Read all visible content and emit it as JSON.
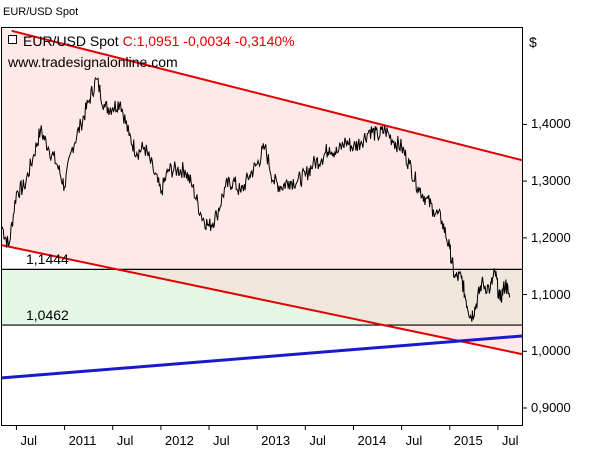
{
  "window_title": "EUR/USD Spot",
  "legend": {
    "name": "EUR/USD Spot",
    "quote": "C:1,0951 -0,0034 -0,3140%"
  },
  "watermark": "www.tradesignalonline.com",
  "colors": {
    "channel_line": "#e00000",
    "support_line": "#1a1acc",
    "price_line": "#000000",
    "channel_fill": "#ffe8e8",
    "range_fill": "#efe6dc",
    "green_fill": "#e6f7e6"
  },
  "chart_data": {
    "type": "line",
    "title": "EUR/USD Spot",
    "ylabel": "$",
    "ylim": [
      0.87,
      1.57
    ],
    "xlim": [
      2010.35,
      2015.75
    ],
    "y_ticks": [
      {
        "value": 1.4,
        "label": "1,4000"
      },
      {
        "value": 1.3,
        "label": "1,3000"
      },
      {
        "value": 1.2,
        "label": "1,2000"
      },
      {
        "value": 1.1,
        "label": "1,1000"
      },
      {
        "value": 1.0,
        "label": "1,0000"
      },
      {
        "value": 0.9,
        "label": "0,9000"
      }
    ],
    "x_ticks": [
      {
        "value": 2010.5,
        "label": "Jul"
      },
      {
        "value": 2011.0,
        "label": "2011"
      },
      {
        "value": 2011.5,
        "label": "Jul"
      },
      {
        "value": 2012.0,
        "label": "2012"
      },
      {
        "value": 2012.5,
        "label": "Jul"
      },
      {
        "value": 2013.0,
        "label": "2013"
      },
      {
        "value": 2013.5,
        "label": "Jul"
      },
      {
        "value": 2014.0,
        "label": "2014"
      },
      {
        "value": 2014.5,
        "label": "Jul"
      },
      {
        "value": 2015.0,
        "label": "2015"
      },
      {
        "value": 2015.5,
        "label": "Jul"
      }
    ],
    "levels": [
      {
        "value": 1.1444,
        "label": "1,1444"
      },
      {
        "value": 1.0462,
        "label": "1,0462"
      }
    ],
    "lines": [
      {
        "name": "channel-upper",
        "color": "#e00000",
        "points": [
          [
            2010.45,
            1.565
          ],
          [
            2015.75,
            1.337
          ]
        ]
      },
      {
        "name": "channel-lower",
        "color": "#e00000",
        "points": [
          [
            2010.35,
            1.187
          ],
          [
            2015.75,
            0.995
          ]
        ]
      },
      {
        "name": "support",
        "color": "#1a1acc",
        "points": [
          [
            2010.35,
            0.953
          ],
          [
            2015.75,
            1.027
          ]
        ]
      }
    ],
    "series": [
      {
        "values": [
          [
            2010.35,
            1.22
          ],
          [
            2010.42,
            1.185
          ],
          [
            2010.5,
            1.28
          ],
          [
            2010.58,
            1.29
          ],
          [
            2010.67,
            1.34
          ],
          [
            2010.75,
            1.39
          ],
          [
            2010.83,
            1.36
          ],
          [
            2010.92,
            1.33
          ],
          [
            2011.0,
            1.29
          ],
          [
            2011.08,
            1.36
          ],
          [
            2011.17,
            1.4
          ],
          [
            2011.25,
            1.44
          ],
          [
            2011.33,
            1.48
          ],
          [
            2011.42,
            1.43
          ],
          [
            2011.5,
            1.43
          ],
          [
            2011.58,
            1.44
          ],
          [
            2011.67,
            1.38
          ],
          [
            2011.75,
            1.35
          ],
          [
            2011.83,
            1.36
          ],
          [
            2011.92,
            1.32
          ],
          [
            2012.0,
            1.28
          ],
          [
            2012.08,
            1.32
          ],
          [
            2012.17,
            1.32
          ],
          [
            2012.25,
            1.32
          ],
          [
            2012.33,
            1.29
          ],
          [
            2012.42,
            1.24
          ],
          [
            2012.5,
            1.22
          ],
          [
            2012.58,
            1.24
          ],
          [
            2012.67,
            1.29
          ],
          [
            2012.75,
            1.3
          ],
          [
            2012.83,
            1.28
          ],
          [
            2012.92,
            1.31
          ],
          [
            2013.0,
            1.33
          ],
          [
            2013.08,
            1.36
          ],
          [
            2013.17,
            1.3
          ],
          [
            2013.25,
            1.29
          ],
          [
            2013.33,
            1.3
          ],
          [
            2013.42,
            1.3
          ],
          [
            2013.5,
            1.31
          ],
          [
            2013.58,
            1.33
          ],
          [
            2013.67,
            1.34
          ],
          [
            2013.75,
            1.36
          ],
          [
            2013.83,
            1.35
          ],
          [
            2013.92,
            1.37
          ],
          [
            2014.0,
            1.36
          ],
          [
            2014.08,
            1.37
          ],
          [
            2014.17,
            1.39
          ],
          [
            2014.25,
            1.38
          ],
          [
            2014.33,
            1.39
          ],
          [
            2014.42,
            1.37
          ],
          [
            2014.5,
            1.36
          ],
          [
            2014.58,
            1.33
          ],
          [
            2014.67,
            1.29
          ],
          [
            2014.75,
            1.27
          ],
          [
            2014.83,
            1.25
          ],
          [
            2014.92,
            1.23
          ],
          [
            2015.0,
            1.18
          ],
          [
            2015.05,
            1.13
          ],
          [
            2015.12,
            1.13
          ],
          [
            2015.17,
            1.09
          ],
          [
            2015.22,
            1.06
          ],
          [
            2015.27,
            1.08
          ],
          [
            2015.33,
            1.12
          ],
          [
            2015.42,
            1.11
          ],
          [
            2015.47,
            1.14
          ],
          [
            2015.52,
            1.09
          ],
          [
            2015.58,
            1.12
          ],
          [
            2015.62,
            1.095
          ]
        ]
      }
    ],
    "grid": false
  }
}
